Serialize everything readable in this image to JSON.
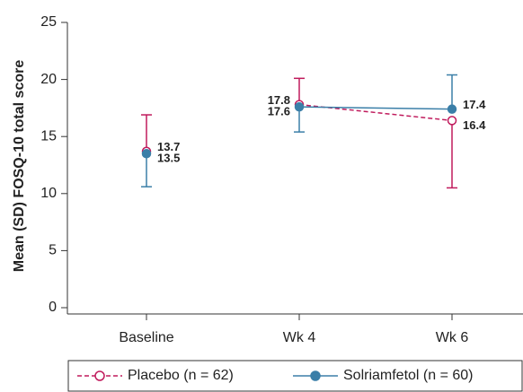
{
  "chart_data": {
    "type": "line",
    "y_label": "Mean (SD) FOSQ-10 total score",
    "categories": [
      "Baseline",
      "Wk 4",
      "Wk 6"
    ],
    "ylim": [
      0,
      25
    ],
    "yticks": [
      0,
      5,
      10,
      15,
      20,
      25
    ],
    "series": [
      {
        "name": "Placebo (n = 62)",
        "color": "#c01a5c",
        "marker": "open",
        "dashed": true,
        "values": [
          13.7,
          17.8,
          16.4
        ],
        "errors": [
          3.2,
          2.3,
          5.9
        ],
        "error_direction": [
          "up",
          "up",
          "down"
        ]
      },
      {
        "name": "Solriamfetol (n = 60)",
        "color": "#3b7fa8",
        "marker": "filled",
        "dashed": false,
        "values": [
          13.5,
          17.6,
          17.4
        ],
        "errors": [
          2.9,
          2.2,
          3.0
        ],
        "error_direction": [
          "down",
          "down",
          "up"
        ]
      }
    ],
    "legend": "bottom"
  }
}
